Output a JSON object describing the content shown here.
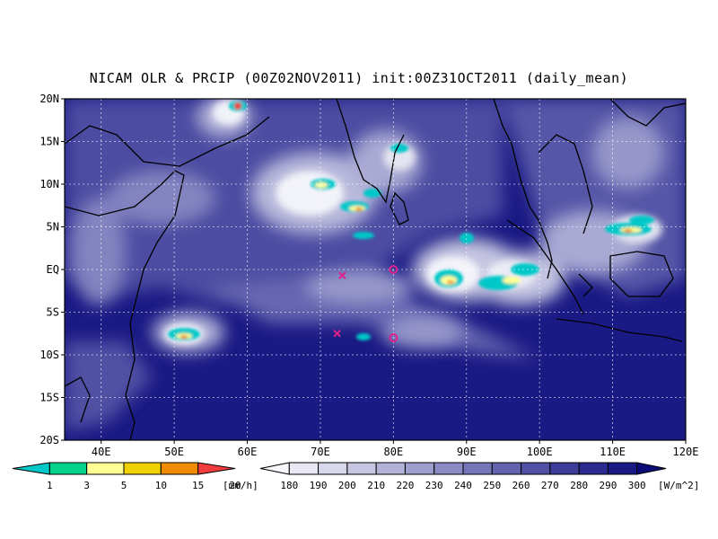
{
  "title": "NICAM OLR & PRCIP (00Z02NOV2011) init:00Z31OCT2011 (daily_mean)",
  "map": {
    "lon_range": [
      35,
      120
    ],
    "lat_range": [
      -20,
      20
    ],
    "lat_ticks": [
      {
        "value": 20,
        "label": "20N"
      },
      {
        "value": 15,
        "label": "15N"
      },
      {
        "value": 10,
        "label": "10N"
      },
      {
        "value": 5,
        "label": "5N"
      },
      {
        "value": 0,
        "label": "EQ"
      },
      {
        "value": -5,
        "label": "5S"
      },
      {
        "value": -10,
        "label": "10S"
      },
      {
        "value": -15,
        "label": "15S"
      },
      {
        "value": -20,
        "label": "20S"
      }
    ],
    "lon_ticks": [
      {
        "value": 40,
        "label": "40E"
      },
      {
        "value": 50,
        "label": "50E"
      },
      {
        "value": 60,
        "label": "60E"
      },
      {
        "value": 70,
        "label": "70E"
      },
      {
        "value": 80,
        "label": "80E"
      },
      {
        "value": 90,
        "label": "90E"
      },
      {
        "value": 100,
        "label": "100E"
      },
      {
        "value": 110,
        "label": "110E"
      },
      {
        "value": 120,
        "label": "120E"
      }
    ],
    "grid": true,
    "markers": [
      {
        "type": "x",
        "lon": 73,
        "lat": -0.7,
        "color": "#e0208a"
      },
      {
        "type": "circle",
        "lon": 80,
        "lat": 0,
        "color": "#e0208a"
      },
      {
        "type": "x",
        "lon": 72.3,
        "lat": -7.5,
        "color": "#e0208a"
      },
      {
        "type": "circle",
        "lon": 80,
        "lat": -8,
        "color": "#e0208a"
      }
    ]
  },
  "precip_colorbar": {
    "labels": [
      "1",
      "3",
      "5",
      "10",
      "15",
      "20"
    ],
    "unit": "[mm/h]",
    "colors": [
      "#00c8c8",
      "#00d28c",
      "#ffff96",
      "#f0d200",
      "#f08c00",
      "#f03c3c"
    ]
  },
  "olr_colorbar": {
    "labels": [
      "180",
      "190",
      "200",
      "210",
      "220",
      "230",
      "240",
      "250",
      "260",
      "270",
      "280",
      "290",
      "300"
    ],
    "unit": "[W/m^2]",
    "colors": [
      "#f6f6fb",
      "#e8e8f3",
      "#d8d8ec",
      "#c6c6e3",
      "#b3b3d9",
      "#9e9ecf",
      "#8a8ac4",
      "#7575b9",
      "#6262ae",
      "#4f4fa4",
      "#3c3c99",
      "#2a2a8f",
      "#1a1a84",
      "#0c0c78"
    ]
  }
}
